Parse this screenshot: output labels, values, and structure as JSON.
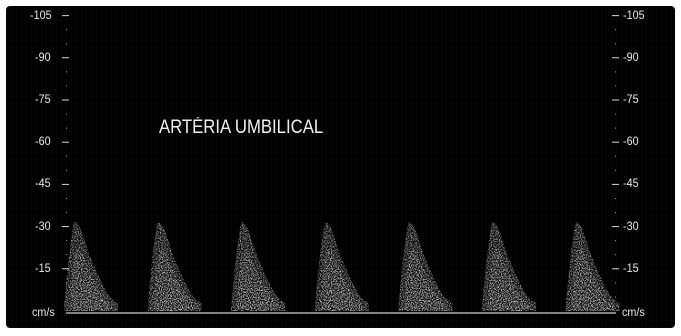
{
  "title": "ARTÉRIA UMBILICAL",
  "unit": "cm/s",
  "scale": {
    "ticks": [
      "-105",
      "-90",
      "-75",
      "-60",
      "-45",
      "-30",
      "-15"
    ],
    "values": [
      -105,
      -90,
      -75,
      -60,
      -45,
      -30,
      -15
    ]
  },
  "waveforms": {
    "count": 7,
    "peak_velocity": -30
  },
  "colors": {
    "background": "#000000",
    "waveform": "#ffffff",
    "text": "#e6e6e6"
  }
}
